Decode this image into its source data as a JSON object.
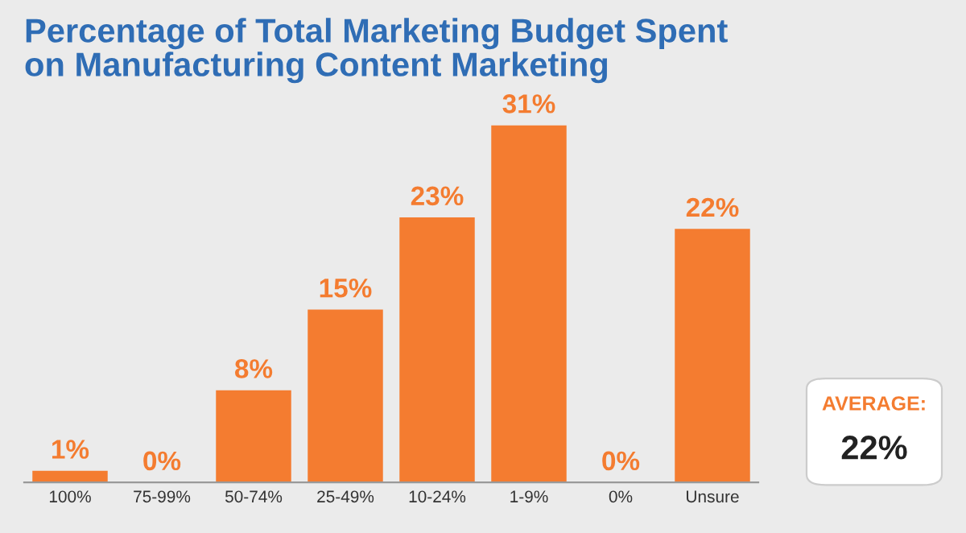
{
  "chart_data": {
    "type": "bar",
    "title": "Percentage of Total Marketing Budget Spent\non Manufacturing Content Marketing",
    "categories": [
      "100%",
      "75-99%",
      "50-74%",
      "25-49%",
      "10-24%",
      "1-9%",
      "0%",
      "Unsure"
    ],
    "values": [
      1,
      0,
      8,
      15,
      23,
      31,
      0,
      22
    ],
    "value_labels": [
      "1%",
      "0%",
      "8%",
      "15%",
      "23%",
      "31%",
      "0%",
      "22%"
    ],
    "color": "#f47c30",
    "annotations": [
      "AVERAGE:",
      "22%"
    ]
  }
}
